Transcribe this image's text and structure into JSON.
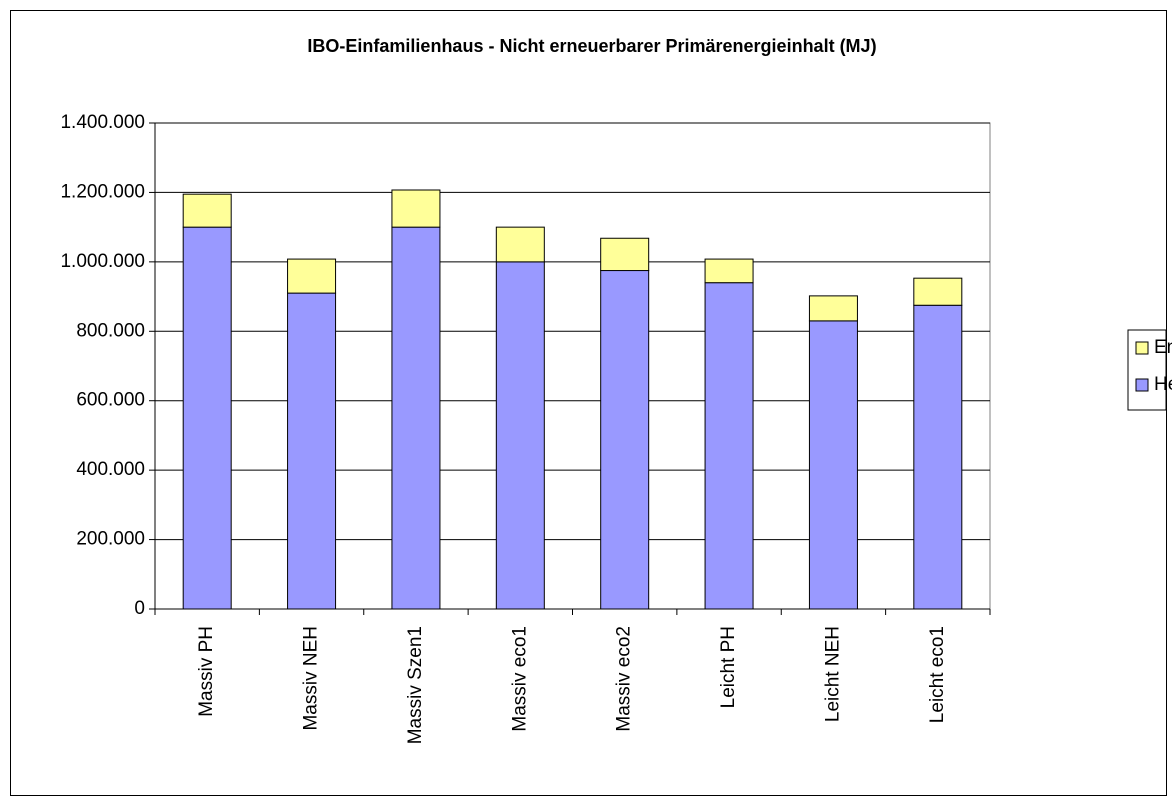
{
  "chart_data": {
    "type": "stacked_bar",
    "title": "IBO-Einfamilienhaus - Nicht erneuerbarer Primärenergieinhalt  (MJ)",
    "categories": [
      "Massiv PH",
      "Massiv NEH",
      "Massiv Szen1",
      "Massiv eco1",
      "Massiv eco2",
      "Leicht PH",
      "Leicht NEH",
      "Leicht eco1"
    ],
    "series": [
      {
        "name": "Herstellung",
        "color": "#9999ff",
        "values": [
          1100000,
          910000,
          1100000,
          1000000,
          975000,
          940000,
          830000,
          875000
        ]
      },
      {
        "name": "Entsorgung",
        "color": "#ffff99",
        "values": [
          95000,
          98000,
          107000,
          100000,
          93000,
          68000,
          72000,
          78000
        ]
      }
    ],
    "ylim": [
      0,
      1400000
    ],
    "yticks": [
      0,
      {
        "value": 200000,
        "label": "200.000"
      },
      {
        "value": 400000,
        "label": "400.000"
      },
      {
        "value": 600000,
        "label": "600.000"
      },
      {
        "value": 800000,
        "label": "800.000"
      },
      {
        "value": 1000000,
        "label": "1.000.000"
      },
      {
        "value": 1200000,
        "label": "1.200.000"
      },
      {
        "value": 1400000,
        "label": "1.400.000"
      }
    ],
    "grid": true,
    "legend": "right"
  }
}
